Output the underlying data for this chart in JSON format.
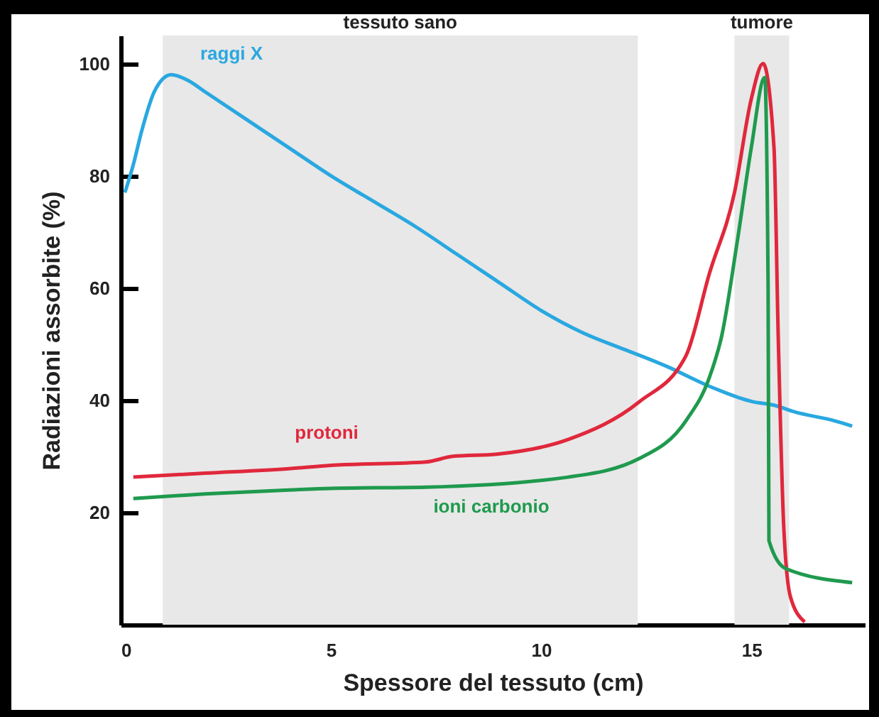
{
  "chart_data": {
    "type": "line",
    "xlabel": "Spessore del tessuto (cm)",
    "ylabel": "Radiazioni assorbite (%)",
    "xlim": [
      0,
      17.7
    ],
    "ylim": [
      0,
      105
    ],
    "xticks": [
      0,
      5,
      10,
      15
    ],
    "yticks": [
      20,
      40,
      60,
      80,
      100
    ],
    "grid": false,
    "bands": [
      {
        "axis": "x",
        "from": 1.0,
        "to": 12.3,
        "label": "tessuto sano",
        "color": "#e8e8e8"
      },
      {
        "axis": "x",
        "from": 14.6,
        "to": 15.9,
        "label": "tumore",
        "color": "#e8e8e8"
      }
    ],
    "series": [
      {
        "name": "raggi X",
        "color": "#29a8e0",
        "x": [
          0.1,
          0.3,
          0.5,
          0.8,
          1.2,
          1.6,
          2,
          3,
          4,
          5,
          6,
          7,
          8,
          9,
          10,
          11,
          12,
          13,
          14,
          15,
          15.6,
          16,
          17,
          17.4
        ],
        "values": [
          77,
          82,
          88,
          95,
          98,
          97,
          95,
          90,
          85,
          80,
          75.5,
          71,
          66,
          61,
          56,
          52,
          49,
          46,
          42.5,
          39.8,
          39,
          38,
          36.3,
          35.4
        ]
      },
      {
        "name": "protoni",
        "color": "#e0283c",
        "x": [
          0.3,
          2,
          4,
          5,
          7.26,
          7.9,
          8.95,
          10.64,
          12.33,
          13.45,
          14.0,
          14.6,
          15.0,
          15.28,
          15.54,
          15.64,
          15.77,
          15.93,
          16.27
        ],
        "values": [
          26.3,
          27,
          27.8,
          28.4,
          29,
          30,
          30.4,
          33,
          39.7,
          48,
          62.5,
          77,
          93.7,
          100,
          85,
          51.6,
          17.8,
          5,
          0.5
        ]
      },
      {
        "name": "ioni carbonio",
        "color": "#1f9a4e",
        "x": [
          0.3,
          2,
          4,
          5,
          7.26,
          10.64,
          12.33,
          13.45,
          14.0,
          14.3,
          14.66,
          15.0,
          15.32,
          15.4,
          15.42,
          15.82,
          17.4
        ],
        "values": [
          22.5,
          23.3,
          24,
          24.3,
          24.5,
          26.3,
          29.6,
          36.4,
          44,
          51.6,
          68,
          85,
          97.5,
          60,
          15,
          10,
          7.5
        ]
      }
    ]
  }
}
